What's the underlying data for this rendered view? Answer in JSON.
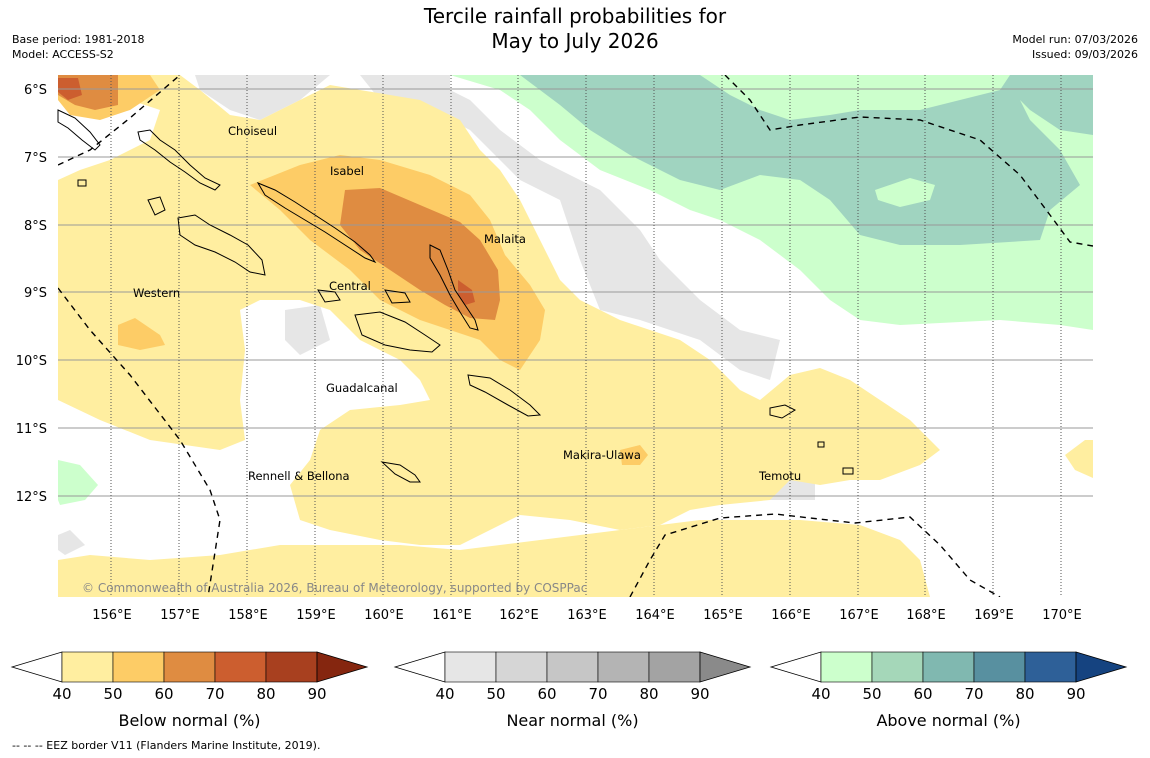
{
  "title_line1": "Tercile rainfall probabilities for",
  "title_line2": "May to July 2026",
  "base_period": "Base period: 1981-2018",
  "model": "Model: ACCESS-S2",
  "model_run": "Model run: 07/03/2026",
  "issued": "Issued: 09/03/2026",
  "lat_labels": [
    "6°S",
    "7°S",
    "8°S",
    "9°S",
    "10°S",
    "11°S",
    "12°S"
  ],
  "lon_labels": [
    "156°E",
    "157°E",
    "158°E",
    "159°E",
    "160°E",
    "161°E",
    "162°E",
    "163°E",
    "164°E",
    "165°E",
    "166°E",
    "167°E",
    "168°E",
    "169°E",
    "170°E"
  ],
  "regions": [
    "Choiseul",
    "Isabel",
    "Malaita",
    "Western",
    "Central",
    "Guadalcanal",
    "Makira-Ulawa",
    "Rennell & Bellona",
    "Temotu"
  ],
  "copyright": "© Commonwealth of Australia 2026, Bureau of Meteorology, supported by COSPPac",
  "legend": {
    "below": {
      "label": "Below normal (%)",
      "colors": [
        "#ffeea0",
        "#fdcc66",
        "#df8c41",
        "#cc5e2f",
        "#a8401f",
        "#85260f"
      ]
    },
    "near": {
      "label": "Near normal (%)",
      "colors": [
        "#e6e6e6",
        "#d6d6d6",
        "#c6c6c6",
        "#b4b4b4",
        "#a3a3a3",
        "#8a8a8a"
      ]
    },
    "above": {
      "label": "Above normal (%)",
      "colors": [
        "#ccffcc",
        "#a5d7b9",
        "#80b8b0",
        "#5890a0",
        "#2e6098",
        "#154380"
      ]
    },
    "ticks": [
      "40",
      "50",
      "60",
      "70",
      "80",
      "90"
    ]
  },
  "footer": "--  --  -- EEZ border V11 (Flanders Marine Institute, 2019)."
}
